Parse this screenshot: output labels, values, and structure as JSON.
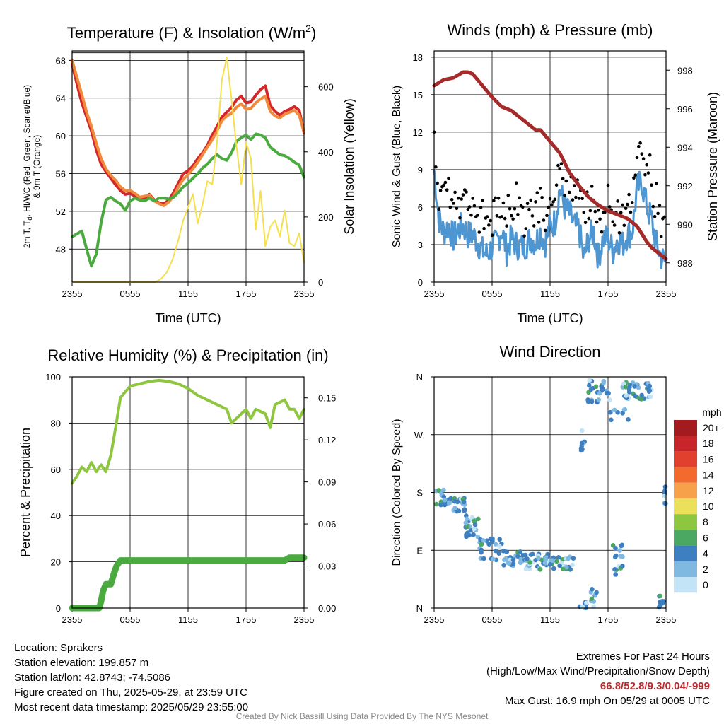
{
  "chart_data": [
    {
      "type": "line",
      "title": "Temperature (F) & Insolation (W/m",
      "title_sup": "2",
      "title_close": ")",
      "xlabel": "Time (UTC)",
      "ylabel": "2m T, T, HI/WC (Red, Green, Scarlet/Blue)",
      "ylabel_sub": "d",
      "ylabel_line2": "& 9m T (Orange)",
      "y2label": "Solar Insolation (Yellow)",
      "x_ticks": [
        "2355",
        "0555",
        "1155",
        "1755",
        "2355"
      ],
      "y_ticks": [
        48,
        52,
        56,
        60,
        64,
        68
      ],
      "y2_ticks": [
        0,
        200,
        400,
        600
      ],
      "ylim": [
        44.5,
        69
      ],
      "y2lim": [
        0,
        710
      ],
      "grid": true,
      "series": [
        {
          "name": "Red",
          "color": "#d62728",
          "axis": "left",
          "x": [
            0,
            0.5,
            1,
            1.5,
            2,
            2.5,
            3,
            3.5,
            4,
            4.5,
            5,
            5.5,
            6,
            6.5,
            7,
            7.5,
            8,
            8.5,
            9,
            9.5,
            10,
            10.5,
            11,
            11.5,
            12,
            12.5,
            13,
            13.5,
            14,
            14.5,
            15,
            15.5,
            16,
            16.5,
            17,
            17.5,
            18,
            18.5,
            19,
            19.5,
            20,
            20.5,
            21,
            21.5,
            22,
            22.5,
            23,
            23.5,
            24
          ],
          "y": [
            67.6,
            65.5,
            63.5,
            62,
            60.5,
            58.5,
            57,
            56.2,
            55.5,
            54.8,
            54.2,
            53.8,
            53.9,
            53.6,
            53.3,
            53.4,
            53.8,
            53.2,
            52.9,
            52.8,
            53.2,
            54,
            55,
            56,
            56.3,
            56.8,
            57.6,
            58.2,
            59,
            60.1,
            61,
            62,
            62.5,
            63,
            63.8,
            64.2,
            63.5,
            63.6,
            64.3,
            64.9,
            65.3,
            63.2,
            62.6,
            62.2,
            62.6,
            62.8,
            63.1,
            62.7,
            60.3
          ]
        },
        {
          "name": "Orange",
          "color": "#f08a3c",
          "axis": "left",
          "x": [
            0,
            0.5,
            1,
            1.5,
            2,
            2.5,
            3,
            3.5,
            4,
            4.5,
            5,
            5.5,
            6,
            6.5,
            7,
            7.5,
            8,
            8.5,
            9,
            9.5,
            10,
            10.5,
            11,
            11.5,
            12,
            12.5,
            13,
            13.5,
            14,
            14.5,
            15,
            15.5,
            16,
            16.5,
            17,
            17.5,
            18,
            18.5,
            19,
            19.5,
            20,
            20.5,
            21,
            21.5,
            22,
            22.5,
            23,
            23.5,
            24
          ],
          "y": [
            68,
            66.2,
            64.4,
            62.5,
            61,
            59.2,
            57.6,
            56.5,
            55.8,
            55.3,
            54.6,
            54.2,
            54.2,
            53.9,
            53.5,
            53.6,
            53.7,
            53.1,
            52.8,
            52.6,
            53,
            53.6,
            54.6,
            55.4,
            55.9,
            56.5,
            57.2,
            58,
            58.8,
            59.6,
            60.5,
            61.6,
            62.1,
            62.4,
            63,
            63.4,
            62.8,
            62.9,
            63.5,
            63.9,
            64.2,
            62.6,
            62.1,
            61.9,
            62.3,
            62.5,
            62.7,
            62.2,
            60.4
          ]
        },
        {
          "name": "Green",
          "color": "#4aaa3f",
          "axis": "left",
          "x": [
            0,
            0.5,
            1,
            1.5,
            2,
            2.5,
            3,
            3.5,
            4,
            4.5,
            5,
            5.5,
            6,
            6.5,
            7,
            7.5,
            8,
            8.5,
            9,
            9.5,
            10,
            10.5,
            11,
            11.5,
            12,
            12.5,
            13,
            13.5,
            14,
            14.5,
            15,
            15.5,
            16,
            16.5,
            17,
            17.5,
            18,
            18.5,
            19,
            19.5,
            20,
            20.5,
            21,
            21.5,
            22,
            22.5,
            23,
            23.5,
            24
          ],
          "y": [
            49.3,
            49.6,
            49.9,
            48,
            46.2,
            47.5,
            50.8,
            53.2,
            53.5,
            53.1,
            52.8,
            52.1,
            53.1,
            53.4,
            53.2,
            53.1,
            53.4,
            53.1,
            53.4,
            53.4,
            53.3,
            53.5,
            54,
            54.6,
            55,
            55.5,
            56,
            56.6,
            57,
            57.6,
            58,
            57.6,
            57.4,
            58.2,
            59.4,
            59.8,
            60.1,
            59.6,
            60.2,
            60.1,
            59.8,
            58.8,
            58.4,
            58,
            57.9,
            57.6,
            57.2,
            56.9,
            55.6
          ]
        },
        {
          "name": "Yellow",
          "color": "#f5df4d",
          "axis": "right",
          "x": [
            0,
            1,
            2,
            3,
            4,
            5,
            6,
            7,
            8,
            8.6,
            9.2,
            9.8,
            10.4,
            11,
            11.5,
            12,
            12.5,
            13,
            13.5,
            14,
            14.5,
            15,
            15.5,
            16,
            16.5,
            17,
            17.5,
            18,
            18.5,
            19,
            19.5,
            20,
            20.5,
            21,
            21.5,
            22,
            22.5,
            23,
            23.5,
            24
          ],
          "y": [
            0,
            0,
            0,
            0,
            0,
            0,
            0,
            0,
            0,
            0,
            10,
            30,
            70,
            130,
            190,
            230,
            270,
            180,
            240,
            310,
            300,
            430,
            620,
            690,
            560,
            420,
            300,
            430,
            380,
            160,
            280,
            110,
            170,
            190,
            140,
            220,
            120,
            110,
            150,
            60
          ]
        }
      ]
    },
    {
      "type": "line",
      "title": "Winds (mph) & Pressure (mb)",
      "xlabel": "Time (UTC)",
      "ylabel": "Sonic Wind & Gust (Blue, Black)",
      "y2label": "Station Pressure (Maroon)",
      "x_ticks": [
        "2355",
        "0555",
        "1155",
        "1755",
        "2355"
      ],
      "y_ticks": [
        0,
        3,
        6,
        9,
        12,
        15,
        18
      ],
      "y2_ticks": [
        988,
        990,
        992,
        994,
        996,
        998
      ],
      "ylim": [
        0,
        18.5
      ],
      "y2lim": [
        987,
        999
      ],
      "grid": true,
      "series": [
        {
          "name": "Blue",
          "color": "#4d96d1",
          "axis": "left",
          "x": [
            0,
            0.5,
            1,
            1.5,
            2,
            2.5,
            3,
            3.5,
            4,
            4.5,
            5,
            5.5,
            6,
            6.5,
            7,
            7.5,
            8,
            8.5,
            9,
            9.5,
            10,
            10.5,
            11,
            11.5,
            12,
            12.5,
            13,
            13.5,
            14,
            14.5,
            15,
            15.5,
            16,
            16.5,
            17,
            17.5,
            18,
            18.5,
            19,
            19.5,
            20,
            20.5,
            21,
            21.5,
            22,
            22.5,
            23,
            23.5,
            24
          ],
          "y": [
            9,
            5,
            4,
            4.5,
            3.5,
            4.2,
            4.5,
            3.8,
            3.8,
            3.2,
            2.5,
            2.2,
            2.8,
            3.2,
            4.2,
            2.5,
            3.5,
            3,
            2.8,
            3,
            3.5,
            3.2,
            4,
            3.2,
            4.5,
            4.8,
            7.5,
            6,
            5.5,
            4.5,
            4.2,
            1.8,
            3.5,
            4,
            2,
            3.5,
            3.5,
            2.5,
            3.5,
            3,
            3.8,
            4,
            7.5,
            8,
            6,
            5,
            3,
            2,
            1.5
          ]
        },
        {
          "name": "Pressure",
          "color": "#a52a2a",
          "axis": "right",
          "x": [
            0,
            1,
            2,
            3,
            3.5,
            4,
            5,
            6,
            7,
            8,
            9,
            10,
            10.5,
            11,
            11.5,
            12,
            13,
            14,
            15,
            16,
            17,
            18,
            19,
            20,
            21,
            22,
            22.5,
            23,
            23.5,
            24
          ],
          "y": [
            997.2,
            997.5,
            997.6,
            997.9,
            997.9,
            997.8,
            997.2,
            996.6,
            996.1,
            995.9,
            995.5,
            995.1,
            994.9,
            994.9,
            994.6,
            994.3,
            993.7,
            992.7,
            992.0,
            991.4,
            991.0,
            990.7,
            990.5,
            990.3,
            989.9,
            989.1,
            988.8,
            988.6,
            988.4,
            988.2
          ]
        }
      ]
    },
    {
      "type": "line",
      "title": "Relative Humidity (%) & Precipitation (in)",
      "xlabel": "",
      "ylabel": "Percent & Precipitation",
      "x_ticks": [
        "2355",
        "0555",
        "1155",
        "1755",
        "2355"
      ],
      "y_ticks": [
        0,
        20,
        40,
        60,
        80,
        100
      ],
      "y2_ticks": [
        "0.00",
        "0.03",
        "0.06",
        "0.09",
        "0.12",
        "0.15"
      ],
      "ylim": [
        0,
        100
      ],
      "y2lim": [
        0,
        0.165
      ],
      "grid": true,
      "series": [
        {
          "name": "RH",
          "color": "#8ec63f",
          "axis": "left",
          "x": [
            0,
            0.5,
            1,
            1.5,
            2,
            2.5,
            3,
            3.5,
            4,
            4.5,
            5,
            6,
            7,
            8,
            9,
            10,
            11,
            12,
            13,
            14,
            15,
            16,
            16.5,
            17,
            18,
            18.5,
            19,
            20,
            20.5,
            21,
            22,
            22.5,
            23,
            23.5,
            24
          ],
          "y": [
            54,
            57,
            61,
            59,
            63,
            59,
            62,
            59,
            66,
            78,
            91,
            96,
            97,
            98,
            98.5,
            98,
            97,
            95,
            92,
            90,
            88,
            86,
            80,
            82,
            86,
            82,
            86,
            84,
            78,
            88,
            90,
            86,
            86,
            82,
            86
          ]
        },
        {
          "name": "Precip",
          "color": "#4aaa3f",
          "axis": "right",
          "x": [
            0,
            1,
            2,
            2.8,
            3,
            3.2,
            3.5,
            4,
            4.3,
            4.6,
            5,
            6,
            8,
            10,
            12,
            14,
            16,
            18,
            20,
            21,
            22,
            22.5,
            23,
            24
          ],
          "y": [
            0,
            0,
            0,
            0,
            0.005,
            0.012,
            0.017,
            0.017,
            0.024,
            0.03,
            0.034,
            0.034,
            0.034,
            0.034,
            0.034,
            0.034,
            0.034,
            0.034,
            0.034,
            0.034,
            0.034,
            0.036,
            0.036,
            0.036
          ]
        }
      ]
    },
    {
      "type": "scatter",
      "title": "Wind Direction",
      "ylabel": "Direction (Colored By Speed)",
      "x_ticks": [
        "2355",
        "0555",
        "1155",
        "1755",
        "2355"
      ],
      "y_ticks": [
        "N",
        "E",
        "S",
        "W",
        "N"
      ],
      "ylim": [
        0,
        360
      ],
      "grid": true,
      "legend_title": "mph",
      "legend_labels": [
        "20+",
        "18",
        "16",
        "14",
        "12",
        "10",
        "8",
        "6",
        "4",
        "2",
        "0"
      ],
      "legend_colors": [
        "#a31b1f",
        "#c8252a",
        "#e1402e",
        "#f26a2e",
        "#f7a24a",
        "#ebe05a",
        "#8dc63f",
        "#4aa862",
        "#3d7fc1",
        "#7fb8e1",
        "#c3e4f6"
      ]
    }
  ],
  "footer": {
    "location": "Location: Sprakers",
    "elevation": "Station elevation: 199.857 m",
    "latlon": "Station lat/lon: 42.8743; -74.5086",
    "created": "Figure created on Thu, 2025-05-29, at 23:59 UTC",
    "recent": "Most recent data timestamp: 2025/05/29 23:55:00",
    "extremes_title": "Extremes For Past 24 Hours",
    "extremes_desc": "(High/Low/Max Wind/Precipitation/Snow Depth)",
    "extremes_values": "66.8/52.8/9.3/0.04/-999",
    "max_gust": "Max Gust: 16.9 mph On 05/29 at 0005 UTC",
    "credit": "Created By Nick Bassill Using Data Provided By The NYS Mesonet"
  }
}
